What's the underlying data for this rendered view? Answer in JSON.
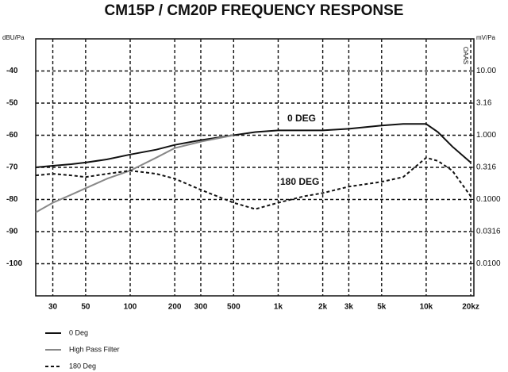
{
  "chart_data": {
    "type": "line",
    "title": "CM15P / CM20P FREQUENCY RESPONSE",
    "y_label": "dBU/Pa",
    "y2_label": "mV/Pa",
    "y2_note": "OAAS",
    "annotations": [
      "0 DEG",
      "180 DEG"
    ],
    "x": [
      23,
      30,
      40,
      50,
      70,
      100,
      150,
      200,
      300,
      500,
      700,
      1000,
      1500,
      2000,
      3000,
      5000,
      7000,
      10000,
      12000,
      15000,
      20000
    ],
    "xlog": true,
    "y2log": true,
    "grid": true,
    "xlim": [
      23,
      21000
    ],
    "xticks": [
      30,
      50,
      100,
      200,
      300,
      500,
      {
        "value": 1000,
        "label": "1k"
      },
      {
        "value": 2000,
        "label": "2k"
      },
      {
        "value": 3000,
        "label": "3k"
      },
      {
        "value": 5000,
        "label": "5k"
      },
      {
        "value": 10000,
        "label": "10k"
      },
      {
        "value": 20000,
        "label": "20kz"
      }
    ],
    "ylim": [
      -110,
      -30
    ],
    "yticks": [
      -40,
      -50,
      -60,
      -70,
      -80,
      -90,
      -100
    ],
    "y2lim": [
      0.00316,
      31.6
    ],
    "y2ticks": [
      {
        "value": 10,
        "label": "10.00"
      },
      3.16,
      {
        "value": 1,
        "label": "1.000"
      },
      0.316,
      {
        "value": 0.1,
        "label": "0.1000"
      },
      0.0316,
      {
        "value": 0.01,
        "label": "0.0100"
      }
    ],
    "series": [
      {
        "name": "0 Deg",
        "color": "#111111",
        "dash": false,
        "values": [
          -70,
          -69.5,
          -69,
          -68.5,
          -67.5,
          -66,
          -64.5,
          -63,
          -61.5,
          -60,
          -59,
          -58.5,
          -58.5,
          -58.5,
          -58,
          -57,
          -56.5,
          -56.5,
          -59,
          -63.5,
          -68.5
        ]
      },
      {
        "name": "High Pass Filter",
        "color": "#888888",
        "dash": false,
        "values": [
          -84,
          -81,
          -78.5,
          -76.5,
          -73.5,
          -71,
          -67,
          -64,
          -62,
          -60,
          null,
          null,
          null,
          null,
          null,
          null,
          null,
          null,
          null,
          null,
          null
        ]
      },
      {
        "name": "180 Deg",
        "color": "#111111",
        "dash": true,
        "values": [
          -72.5,
          -72,
          -72.5,
          -73,
          -72,
          -71,
          -72,
          -73.5,
          -77,
          -81,
          -83,
          -81,
          -79,
          -78,
          -76,
          -74.5,
          -73,
          -67,
          -68,
          -71,
          -79
        ]
      }
    ]
  }
}
